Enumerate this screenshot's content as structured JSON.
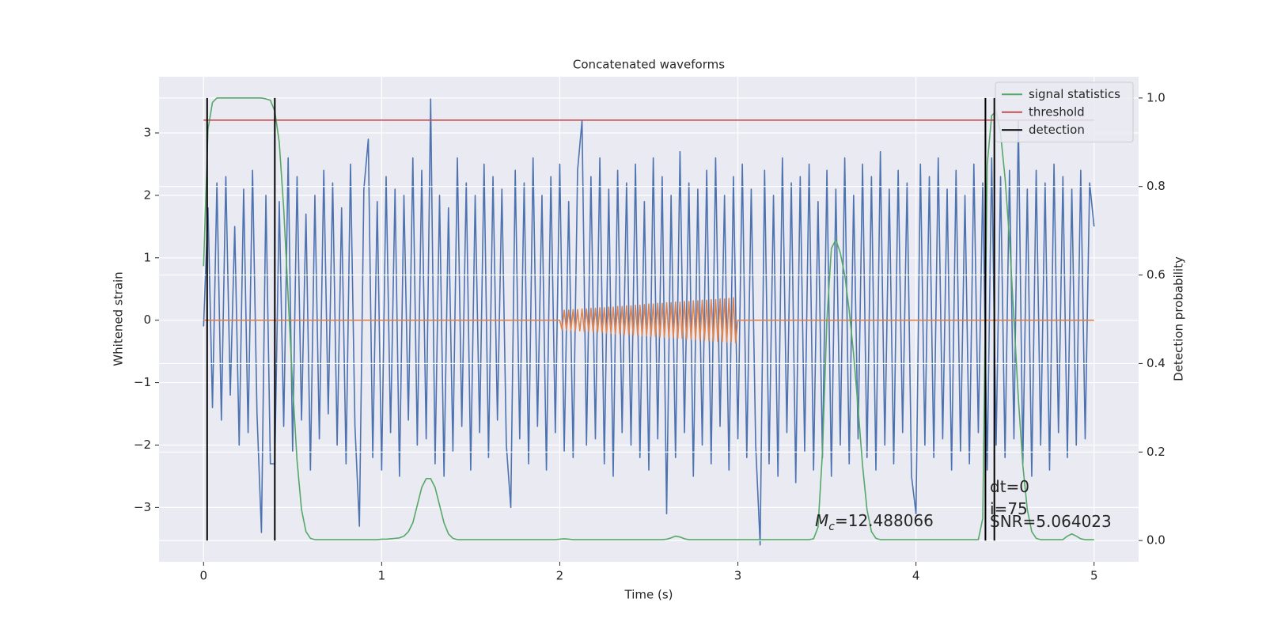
{
  "chart_data": {
    "type": "line",
    "title": "Concatenated waveforms",
    "xlabel": "Time (s)",
    "ylabel": "Whitened strain",
    "y2label": "Detection probability",
    "xlim": [
      -0.25,
      5.25
    ],
    "ylim": [
      -3.87,
      3.9
    ],
    "y2lim": [
      -0.048,
      1.048
    ],
    "xticks": [
      0,
      1,
      2,
      3,
      4,
      5
    ],
    "yticks": [
      {
        "value": -3,
        "label": "−3"
      },
      {
        "value": -2,
        "label": "−2"
      },
      {
        "value": -1,
        "label": "−1"
      },
      0,
      1,
      2,
      3
    ],
    "y2ticks": [
      {
        "value": 0,
        "label": "0.0"
      },
      0.2,
      0.4,
      0.6,
      0.8,
      {
        "value": 1,
        "label": "1.0"
      }
    ],
    "grid": true,
    "legend": "upper right",
    "x": [
      0,
      0.025,
      0.05,
      0.075,
      0.1,
      0.125,
      0.15,
      0.175,
      0.2,
      0.225,
      0.25,
      0.275,
      0.3,
      0.325,
      0.35,
      0.375,
      0.4,
      0.425,
      0.45,
      0.475,
      0.5,
      0.525,
      0.55,
      0.575,
      0.6,
      0.625,
      0.65,
      0.675,
      0.7,
      0.725,
      0.75,
      0.775,
      0.8,
      0.825,
      0.85,
      0.875,
      0.9,
      0.925,
      0.95,
      0.975,
      1,
      1.025,
      1.05,
      1.075,
      1.1,
      1.125,
      1.15,
      1.175,
      1.2,
      1.225,
      1.25,
      1.275,
      1.3,
      1.325,
      1.35,
      1.375,
      1.4,
      1.425,
      1.45,
      1.475,
      1.5,
      1.525,
      1.55,
      1.575,
      1.6,
      1.625,
      1.65,
      1.675,
      1.7,
      1.725,
      1.75,
      1.775,
      1.8,
      1.825,
      1.85,
      1.875,
      1.9,
      1.925,
      1.95,
      1.975,
      2,
      2.025,
      2.05,
      2.075,
      2.1,
      2.125,
      2.15,
      2.175,
      2.2,
      2.225,
      2.25,
      2.275,
      2.3,
      2.325,
      2.35,
      2.375,
      2.4,
      2.425,
      2.45,
      2.475,
      2.5,
      2.525,
      2.55,
      2.575,
      2.6,
      2.625,
      2.65,
      2.675,
      2.7,
      2.725,
      2.75,
      2.775,
      2.8,
      2.825,
      2.85,
      2.875,
      2.9,
      2.925,
      2.95,
      2.975,
      3,
      3.025,
      3.05,
      3.075,
      3.1,
      3.125,
      3.15,
      3.175,
      3.2,
      3.225,
      3.25,
      3.275,
      3.3,
      3.325,
      3.35,
      3.375,
      3.4,
      3.425,
      3.45,
      3.475,
      3.5,
      3.525,
      3.55,
      3.575,
      3.6,
      3.625,
      3.65,
      3.675,
      3.7,
      3.725,
      3.75,
      3.775,
      3.8,
      3.825,
      3.85,
      3.875,
      3.9,
      3.925,
      3.95,
      3.975,
      4,
      4.025,
      4.05,
      4.075,
      4.1,
      4.125,
      4.15,
      4.175,
      4.2,
      4.225,
      4.25,
      4.275,
      4.3,
      4.325,
      4.35,
      4.375,
      4.4,
      4.425,
      4.45,
      4.475,
      4.5,
      4.525,
      4.55,
      4.575,
      4.6,
      4.625,
      4.65,
      4.675,
      4.7,
      4.725,
      4.75,
      4.775,
      4.8,
      4.825,
      4.85,
      4.875,
      4.9,
      4.925,
      4.95,
      4.975,
      5
    ],
    "series": [
      {
        "color": "#4c72b0",
        "values": [
          -0.1,
          1.8,
          -1.4,
          2.2,
          -1.6,
          2.3,
          -1.2,
          1.5,
          -2.0,
          2.1,
          -1.8,
          2.4,
          -1.5,
          -3.4,
          2.0,
          -2.3,
          -2.3,
          1.9,
          -1.7,
          2.6,
          -2.1,
          2.3,
          -1.6,
          1.7,
          -2.4,
          2.0,
          -1.9,
          2.4,
          -1.5,
          2.2,
          -2.0,
          1.8,
          -2.3,
          2.5,
          -1.7,
          -3.3,
          2.1,
          2.9,
          -2.2,
          1.9,
          -2.4,
          2.3,
          -1.8,
          2.1,
          -2.5,
          2.0,
          -1.6,
          2.6,
          -2.0,
          2.4,
          -1.9,
          3.55,
          -2.3,
          2.0,
          -2.5,
          1.8,
          -2.1,
          2.6,
          -1.7,
          2.2,
          -2.4,
          2.0,
          -1.8,
          2.5,
          -2.2,
          2.3,
          -1.6,
          2.1,
          -2.0,
          -3.0,
          2.4,
          -1.9,
          2.2,
          -2.3,
          2.6,
          -1.7,
          2.0,
          -2.4,
          2.3,
          -1.8,
          2.5,
          -2.1,
          1.9,
          -2.2,
          2.4,
          3.2,
          -2.0,
          2.3,
          -1.9,
          2.6,
          -2.3,
          2.1,
          -2.5,
          2.4,
          -1.8,
          2.2,
          -2.0,
          2.5,
          -2.2,
          1.9,
          -2.4,
          2.6,
          -1.9,
          2.3,
          -3.1,
          2.0,
          -2.2,
          2.7,
          -1.8,
          2.2,
          -2.5,
          2.1,
          -2.0,
          2.4,
          -2.3,
          2.6,
          -1.7,
          2.0,
          -2.4,
          2.3,
          -1.9,
          2.5,
          -2.2,
          2.1,
          -2.0,
          -3.6,
          2.4,
          -2.3,
          2.0,
          -2.5,
          2.6,
          -1.8,
          2.2,
          -2.6,
          2.3,
          -2.1,
          2.5,
          -2.4,
          1.9,
          -2.2,
          2.4,
          -2.5,
          2.1,
          -2.0,
          2.6,
          -2.3,
          2.0,
          -1.9,
          2.5,
          -2.2,
          2.3,
          -2.4,
          2.7,
          -2.0,
          2.1,
          -2.3,
          2.4,
          -1.8,
          2.2,
          -2.5,
          -3.1,
          2.5,
          -2.0,
          2.3,
          -2.2,
          2.6,
          -1.9,
          2.1,
          -2.4,
          2.4,
          -2.1,
          2.0,
          -2.3,
          2.5,
          -1.8,
          2.2,
          -2.4,
          2.6,
          -2.0,
          2.3,
          -2.2,
          2.4,
          -1.9,
          3.2,
          -2.3,
          2.1,
          -2.5,
          2.4,
          -2.0,
          2.2,
          -2.4,
          2.5,
          -1.8,
          2.3,
          -2.2,
          2.1,
          -2.0,
          2.4,
          -1.9,
          2.2,
          1.5
        ]
      },
      {
        "color": "#dd8452",
        "x": [
          0,
          2,
          2.0125,
          2.025,
          2.0375,
          2.05,
          2.0625,
          2.075,
          2.0875,
          2.1,
          2.1125,
          2.125,
          2.1375,
          2.15,
          2.1625,
          2.175,
          2.1875,
          2.2,
          2.2125,
          2.225,
          2.2375,
          2.25,
          2.2625,
          2.275,
          2.2875,
          2.3,
          2.3125,
          2.325,
          2.3375,
          2.35,
          2.3625,
          2.375,
          2.3875,
          2.4,
          2.4125,
          2.425,
          2.4375,
          2.45,
          2.4625,
          2.475,
          2.4875,
          2.5,
          2.5125,
          2.525,
          2.5375,
          2.55,
          2.5625,
          2.575,
          2.5875,
          2.6,
          2.6125,
          2.625,
          2.6375,
          2.65,
          2.6625,
          2.675,
          2.6875,
          2.7,
          2.7125,
          2.725,
          2.7375,
          2.75,
          2.7625,
          2.775,
          2.7875,
          2.8,
          2.8125,
          2.825,
          2.8375,
          2.85,
          2.8625,
          2.875,
          2.8875,
          2.9,
          2.9125,
          2.925,
          2.9375,
          2.95,
          2.9625,
          2.975,
          2.9875,
          3,
          5
        ],
        "values": [
          0,
          0,
          -0.15,
          0.16,
          -0.16,
          0.16,
          -0.16,
          0.17,
          -0.17,
          0.17,
          -0.17,
          0.18,
          -0.18,
          0.18,
          -0.18,
          0.19,
          -0.19,
          0.19,
          -0.19,
          0.2,
          -0.2,
          0.2,
          -0.21,
          0.21,
          -0.21,
          0.21,
          -0.22,
          0.22,
          -0.22,
          0.22,
          -0.23,
          0.23,
          -0.23,
          0.23,
          -0.24,
          0.24,
          -0.24,
          0.24,
          -0.25,
          0.25,
          -0.25,
          0.26,
          -0.26,
          0.26,
          -0.26,
          0.27,
          -0.27,
          0.27,
          -0.27,
          0.28,
          -0.28,
          0.28,
          -0.28,
          0.29,
          -0.29,
          0.29,
          -0.29,
          0.3,
          -0.3,
          0.3,
          -0.31,
          0.31,
          -0.31,
          0.31,
          -0.32,
          0.32,
          -0.32,
          0.32,
          -0.33,
          0.33,
          -0.33,
          0.33,
          -0.34,
          0.34,
          -0.34,
          0.34,
          -0.35,
          0.35,
          -0.35,
          0.36,
          -0.36,
          0,
          0
        ]
      },
      {
        "name": "signal statistics",
        "color": "#55a868",
        "axis": "y2",
        "values": [
          0.62,
          0.93,
          0.99,
          1,
          1,
          1,
          1,
          1,
          1,
          1,
          1,
          1,
          1,
          1,
          0.998,
          0.995,
          0.97,
          0.9,
          0.75,
          0.55,
          0.35,
          0.18,
          0.07,
          0.02,
          0.005,
          0.002,
          0.002,
          0.002,
          0.002,
          0.002,
          0.002,
          0.002,
          0.002,
          0.002,
          0.002,
          0.002,
          0.002,
          0.002,
          0.002,
          0.002,
          0.003,
          0.003,
          0.004,
          0.005,
          0.006,
          0.01,
          0.02,
          0.04,
          0.08,
          0.12,
          0.14,
          0.14,
          0.12,
          0.08,
          0.04,
          0.015,
          0.005,
          0.002,
          0.002,
          0.002,
          0.002,
          0.002,
          0.002,
          0.002,
          0.002,
          0.002,
          0.002,
          0.002,
          0.002,
          0.002,
          0.002,
          0.002,
          0.002,
          0.002,
          0.002,
          0.002,
          0.002,
          0.002,
          0.002,
          0.002,
          0.003,
          0.004,
          0.003,
          0.002,
          0.002,
          0.002,
          0.002,
          0.002,
          0.002,
          0.002,
          0.002,
          0.002,
          0.002,
          0.002,
          0.002,
          0.002,
          0.002,
          0.002,
          0.002,
          0.002,
          0.002,
          0.002,
          0.002,
          0.002,
          0.003,
          0.006,
          0.01,
          0.008,
          0.004,
          0.002,
          0.002,
          0.002,
          0.002,
          0.002,
          0.002,
          0.002,
          0.002,
          0.002,
          0.002,
          0.002,
          0.002,
          0.002,
          0.002,
          0.002,
          0.002,
          0.002,
          0.002,
          0.002,
          0.002,
          0.002,
          0.002,
          0.002,
          0.002,
          0.002,
          0.002,
          0.002,
          0.002,
          0.004,
          0.03,
          0.2,
          0.5,
          0.66,
          0.68,
          0.65,
          0.6,
          0.52,
          0.42,
          0.3,
          0.17,
          0.07,
          0.02,
          0.005,
          0.002,
          0.002,
          0.002,
          0.002,
          0.002,
          0.002,
          0.002,
          0.002,
          0.002,
          0.002,
          0.002,
          0.002,
          0.002,
          0.002,
          0.002,
          0.002,
          0.002,
          0.002,
          0.002,
          0.002,
          0.002,
          0.002,
          0.002,
          0.05,
          0.85,
          0.96,
          0.97,
          0.92,
          0.82,
          0.68,
          0.5,
          0.32,
          0.17,
          0.07,
          0.02,
          0.005,
          0.002,
          0.002,
          0.002,
          0.002,
          0.002,
          0.002,
          0.01,
          0.015,
          0.01,
          0.004,
          0.002,
          0.002,
          0.002
        ]
      },
      {
        "name": "threshold",
        "color": "#c44e52",
        "axis": "y2",
        "x": [
          0,
          5
        ],
        "values": [
          0.95,
          0.95
        ]
      },
      {
        "name": "detection",
        "color": "#000000",
        "axis": "y2",
        "style": "vlines",
        "x": [
          0.02,
          0.4,
          4.39,
          4.44
        ],
        "ymin": 0,
        "ymax": 1
      }
    ],
    "annotations": [
      {
        "symbol": "M",
        "subscript": "c",
        "text": "=12.488066"
      },
      {
        "text": "dt=0"
      },
      {
        "text": "i=75"
      },
      {
        "text": "SNR=5.064023"
      }
    ]
  }
}
